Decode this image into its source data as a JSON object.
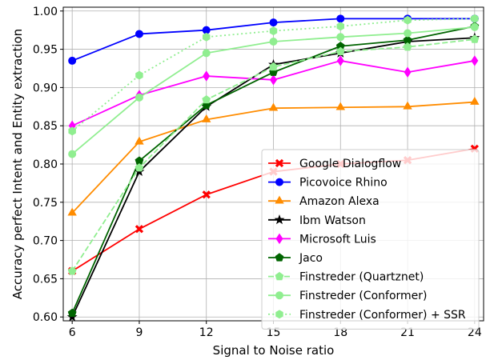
{
  "chart_data": {
    "type": "line",
    "title": "",
    "xlabel": "Signal to Noise ratio",
    "ylabel": "Accuracy perfect Intent and Entity extraction",
    "x": [
      6,
      9,
      12,
      15,
      18,
      21,
      24
    ],
    "xlim": [
      5.6,
      24.4
    ],
    "ylim": [
      0.595,
      1.005
    ],
    "xticks": [
      6,
      9,
      12,
      15,
      18,
      21,
      24
    ],
    "yticks": [
      0.6,
      0.65,
      0.7,
      0.75,
      0.8,
      0.85,
      0.9,
      0.95,
      1.0
    ],
    "xtick_labels": [
      "6",
      "9",
      "12",
      "15",
      "18",
      "21",
      "24"
    ],
    "ytick_labels": [
      "0.60",
      "0.65",
      "0.70",
      "0.75",
      "0.80",
      "0.85",
      "0.90",
      "0.95",
      "1.00"
    ],
    "grid": true,
    "legend_position": "lower-right",
    "series": [
      {
        "name": "Google Dialogflow",
        "color": "#ff0000",
        "marker": "x-filled",
        "line": "solid",
        "values": [
          0.66,
          0.715,
          0.76,
          0.79,
          0.8,
          0.805,
          0.82
        ]
      },
      {
        "name": "Picovoice Rhino",
        "color": "#0000ff",
        "marker": "circle",
        "line": "solid",
        "values": [
          0.935,
          0.97,
          0.975,
          0.985,
          0.99,
          0.99,
          0.99
        ]
      },
      {
        "name": "Amazon Alexa",
        "color": "#ff8c00",
        "marker": "triangle",
        "line": "solid",
        "values": [
          0.736,
          0.829,
          0.858,
          0.873,
          0.874,
          0.875,
          0.881
        ]
      },
      {
        "name": "Ibm Watson",
        "color": "#000000",
        "marker": "star",
        "line": "solid",
        "values": [
          0.6,
          0.79,
          0.875,
          0.93,
          0.945,
          0.96,
          0.965
        ]
      },
      {
        "name": "Microsoft Luis",
        "color": "#ff00ff",
        "marker": "diamond",
        "line": "solid",
        "values": [
          0.85,
          0.89,
          0.915,
          0.91,
          0.935,
          0.92,
          0.935
        ]
      },
      {
        "name": "Jaco",
        "color": "#006400",
        "marker": "pentagon",
        "line": "solid",
        "values": [
          0.605,
          0.804,
          0.877,
          0.92,
          0.954,
          0.962,
          0.98
        ]
      },
      {
        "name": "Finstreder (Quartznet)",
        "color": "#90ee90",
        "marker": "pentagon",
        "line": "dashed",
        "values": [
          0.66,
          0.795,
          0.884,
          0.927,
          0.947,
          0.953,
          0.963
        ]
      },
      {
        "name": "Finstreder (Conformer)",
        "color": "#90ee90",
        "marker": "circle",
        "line": "solid",
        "values": [
          0.813,
          0.887,
          0.945,
          0.96,
          0.966,
          0.971,
          0.979
        ]
      },
      {
        "name": "Finstreder (Conformer) + SSR",
        "color": "#90ee90",
        "marker": "hexagon",
        "line": "dotted",
        "values": [
          0.843,
          0.916,
          0.966,
          0.974,
          0.98,
          0.988,
          0.99
        ]
      }
    ]
  }
}
